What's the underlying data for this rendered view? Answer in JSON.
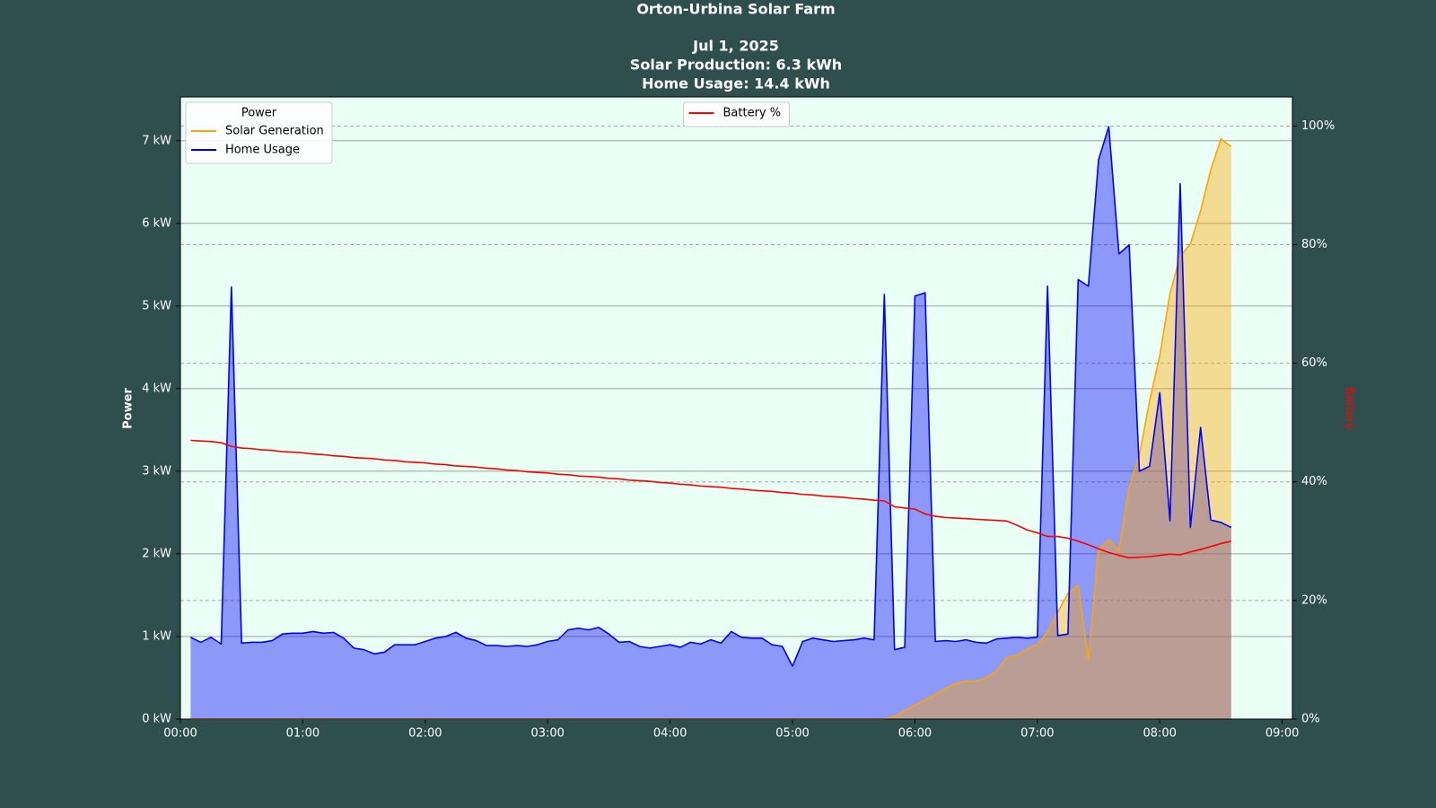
{
  "chart_data": {
    "type": "area",
    "title": "Orton-Urbina Solar Farm",
    "subtitle": [
      "Jul 1, 2025",
      "Solar Production: 6.3 kWh",
      "Home Usage: 14.4 kWh"
    ],
    "ylabel": "Power",
    "y2label": "Battery",
    "legend_title": "Power",
    "legend": "upper left",
    "legend2": "upper center",
    "grid": true,
    "y2grid": true,
    "xlim": [
      "00:00",
      "09:05"
    ],
    "xticks": [
      "00:00",
      "01:00",
      "02:00",
      "03:00",
      "04:00",
      "05:00",
      "06:00",
      "07:00",
      "08:00",
      "09:00"
    ],
    "ylim": [
      0,
      7.53
    ],
    "yticks": [
      {
        "value": 0,
        "label": "0 kW"
      },
      {
        "value": 1,
        "label": "1 kW"
      },
      {
        "value": 2,
        "label": "2 kW"
      },
      {
        "value": 3,
        "label": "3 kW"
      },
      {
        "value": 4,
        "label": "4 kW"
      },
      {
        "value": 5,
        "label": "5 kW"
      },
      {
        "value": 6,
        "label": "6 kW"
      },
      {
        "value": 7,
        "label": "7 kW"
      }
    ],
    "y2lim": [
      0,
      104.9
    ],
    "y2ticks": [
      {
        "value": 0,
        "label": "0%"
      },
      {
        "value": 20,
        "label": "20%"
      },
      {
        "value": 40,
        "label": "40%"
      },
      {
        "value": 60,
        "label": "60%"
      },
      {
        "value": 80,
        "label": "80%"
      },
      {
        "value": 100,
        "label": "100%"
      }
    ],
    "x": [
      "00:05",
      "00:10",
      "00:15",
      "00:20",
      "00:25",
      "00:30",
      "00:35",
      "00:40",
      "00:45",
      "00:50",
      "00:55",
      "01:00",
      "01:05",
      "01:10",
      "01:15",
      "01:20",
      "01:25",
      "01:30",
      "01:35",
      "01:40",
      "01:45",
      "01:50",
      "01:55",
      "02:00",
      "02:05",
      "02:10",
      "02:15",
      "02:20",
      "02:25",
      "02:30",
      "02:35",
      "02:40",
      "02:45",
      "02:50",
      "02:55",
      "03:00",
      "03:05",
      "03:10",
      "03:15",
      "03:20",
      "03:25",
      "03:30",
      "03:35",
      "03:40",
      "03:45",
      "03:50",
      "03:55",
      "04:00",
      "04:05",
      "04:10",
      "04:15",
      "04:20",
      "04:25",
      "04:30",
      "04:35",
      "04:40",
      "04:45",
      "04:50",
      "04:55",
      "05:00",
      "05:05",
      "05:10",
      "05:15",
      "05:20",
      "05:25",
      "05:30",
      "05:35",
      "05:40",
      "05:45",
      "05:50",
      "05:55",
      "06:00",
      "06:05",
      "06:10",
      "06:15",
      "06:20",
      "06:25",
      "06:30",
      "06:35",
      "06:40",
      "06:45",
      "06:50",
      "06:55",
      "07:00",
      "07:05",
      "07:10",
      "07:15",
      "07:20",
      "07:25",
      "07:30",
      "07:35",
      "07:40",
      "07:45",
      "07:50",
      "07:55",
      "08:00",
      "08:05",
      "08:10",
      "08:15",
      "08:20",
      "08:25",
      "08:30",
      "08:35"
    ],
    "series": [
      {
        "name": "Solar Generation",
        "color": "#ffa500",
        "fill": true,
        "values": [
          0,
          0,
          0,
          0,
          0,
          0,
          0,
          0,
          0,
          0,
          0,
          0,
          0,
          0,
          0,
          0,
          0,
          0,
          0,
          0,
          0,
          0,
          0,
          0,
          0,
          0,
          0,
          0,
          0,
          0,
          0,
          0,
          0,
          0,
          0,
          0,
          0,
          0,
          0,
          0,
          0,
          0,
          0,
          0,
          0,
          0,
          0,
          0,
          0,
          0,
          0,
          0,
          0,
          0,
          0,
          0,
          0,
          0,
          0,
          0,
          0,
          0,
          0,
          0,
          0,
          0,
          0,
          0,
          0,
          0.03,
          0.1,
          0.17,
          0.23,
          0.3,
          0.37,
          0.43,
          0.46,
          0.46,
          0.5,
          0.58,
          0.74,
          0.77,
          0.85,
          0.9,
          1.05,
          1.3,
          1.52,
          1.62,
          0.72,
          2.06,
          2.17,
          2.04,
          2.8,
          3.2,
          3.85,
          4.4,
          5.15,
          5.6,
          5.75,
          6.15,
          6.65,
          7.02,
          6.93
        ]
      },
      {
        "name": "Home Usage",
        "color": "#0000ff",
        "fill": true,
        "values": [
          0.99,
          0.93,
          0.99,
          0.91,
          5.23,
          0.92,
          0.93,
          0.93,
          0.95,
          1.03,
          1.04,
          1.04,
          1.06,
          1.04,
          1.05,
          0.98,
          0.86,
          0.84,
          0.79,
          0.81,
          0.9,
          0.9,
          0.9,
          0.94,
          0.98,
          1.0,
          1.05,
          0.98,
          0.95,
          0.89,
          0.89,
          0.88,
          0.89,
          0.88,
          0.9,
          0.94,
          0.96,
          1.08,
          1.1,
          1.08,
          1.11,
          1.03,
          0.93,
          0.94,
          0.88,
          0.86,
          0.88,
          0.9,
          0.87,
          0.93,
          0.91,
          0.96,
          0.92,
          1.06,
          0.99,
          0.98,
          0.98,
          0.9,
          0.88,
          0.64,
          0.94,
          0.98,
          0.96,
          0.94,
          0.95,
          0.96,
          0.98,
          0.96,
          5.14,
          0.84,
          0.87,
          5.12,
          5.16,
          0.94,
          0.95,
          0.94,
          0.96,
          0.93,
          0.92,
          0.97,
          0.98,
          0.99,
          0.98,
          0.99,
          5.24,
          1.01,
          1.03,
          5.32,
          5.24,
          6.77,
          7.17,
          5.63,
          5.74,
          3.0,
          3.06,
          3.95,
          2.4,
          6.48,
          2.32,
          3.53,
          2.41,
          2.38,
          2.32
        ]
      },
      {
        "name": "Battery %",
        "color": "#ff0000",
        "axis": "y2",
        "values": [
          47.0,
          46.9,
          46.8,
          46.6,
          46.0,
          45.7,
          45.6,
          45.4,
          45.3,
          45.1,
          45.0,
          44.9,
          44.7,
          44.6,
          44.4,
          44.3,
          44.1,
          44.0,
          43.9,
          43.7,
          43.6,
          43.4,
          43.3,
          43.2,
          43.0,
          42.9,
          42.7,
          42.6,
          42.5,
          42.3,
          42.2,
          42.0,
          41.9,
          41.7,
          41.6,
          41.5,
          41.3,
          41.2,
          41.0,
          40.9,
          40.8,
          40.6,
          40.5,
          40.3,
          40.2,
          40.1,
          39.9,
          39.8,
          39.6,
          39.5,
          39.3,
          39.2,
          39.1,
          38.9,
          38.8,
          38.6,
          38.5,
          38.4,
          38.2,
          38.1,
          37.9,
          37.8,
          37.6,
          37.5,
          37.4,
          37.2,
          37.1,
          36.9,
          36.8,
          35.8,
          35.6,
          35.4,
          34.6,
          34.2,
          34.0,
          33.9,
          33.8,
          33.7,
          33.6,
          33.5,
          33.4,
          32.7,
          31.9,
          31.4,
          30.8,
          30.8,
          30.5,
          30.0,
          29.4,
          28.7,
          28.1,
          27.6,
          27.2,
          27.3,
          27.4,
          27.6,
          27.8,
          27.7,
          28.2,
          28.6,
          29.1,
          29.6,
          30.0
        ]
      }
    ]
  }
}
